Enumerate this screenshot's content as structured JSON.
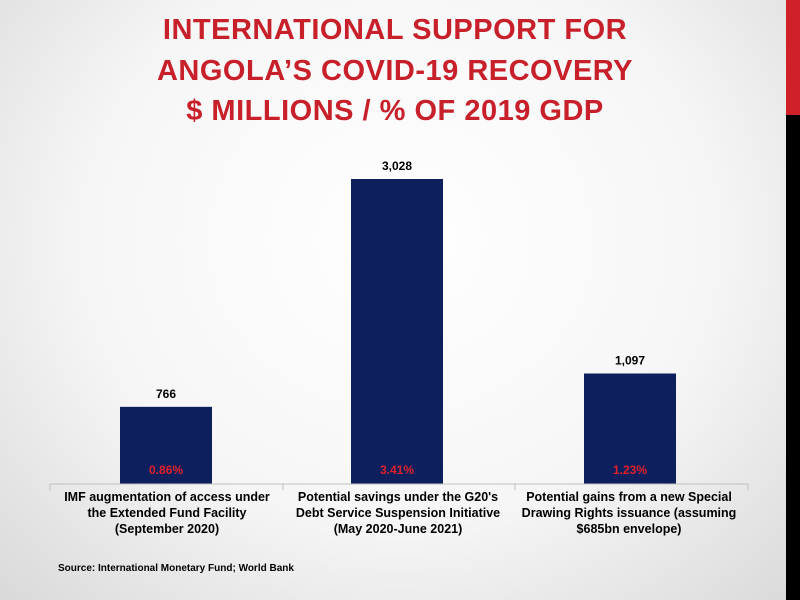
{
  "title_lines": [
    "INTERNATIONAL SUPPORT FOR",
    "ANGOLA’S COVID-19 RECOVERY",
    "$ MILLIONS / % OF 2019 GDP"
  ],
  "source": "Source: International Monetary Fund; World Bank",
  "colors": {
    "bar": "#0d1f5c",
    "title": "#c8202a",
    "percent": "#e0202a",
    "stripe_top": "#d0202a",
    "stripe_bottom": "#000000"
  },
  "chart_data": {
    "type": "bar",
    "title": "INTERNATIONAL SUPPORT FOR ANGOLA’S COVID-19 RECOVERY $ MILLIONS / % OF 2019 GDP",
    "categories": [
      "IMF augmentation of access under the Extended Fund Facility (September 2020)",
      "Potential savings under the G20's Debt Service Suspension Initiative (May 2020-June 2021)",
      "Potential gains from a new Special Drawing Rights issuance (assuming $685bn envelope)"
    ],
    "category_lines": [
      [
        "IMF augmentation of access under",
        "the Extended Fund Facility",
        "(September 2020)"
      ],
      [
        "Potential savings under the G20's",
        "Debt Service Suspension Initiative",
        "(May 2020-June 2021)"
      ],
      [
        "Potential gains from a new Special",
        "Drawing Rights issuance (assuming",
        "$685bn envelope)"
      ]
    ],
    "values": [
      766,
      3028,
      1097
    ],
    "value_labels": [
      "766",
      "3,028",
      "1,097"
    ],
    "percent_gdp": [
      0.86,
      3.41,
      1.23
    ],
    "percent_labels": [
      "0.86%",
      "3.41%",
      "1.23%"
    ],
    "xlabel": "",
    "ylabel": "",
    "ylim": [
      0,
      3028
    ],
    "grid": false,
    "legend": "none"
  }
}
